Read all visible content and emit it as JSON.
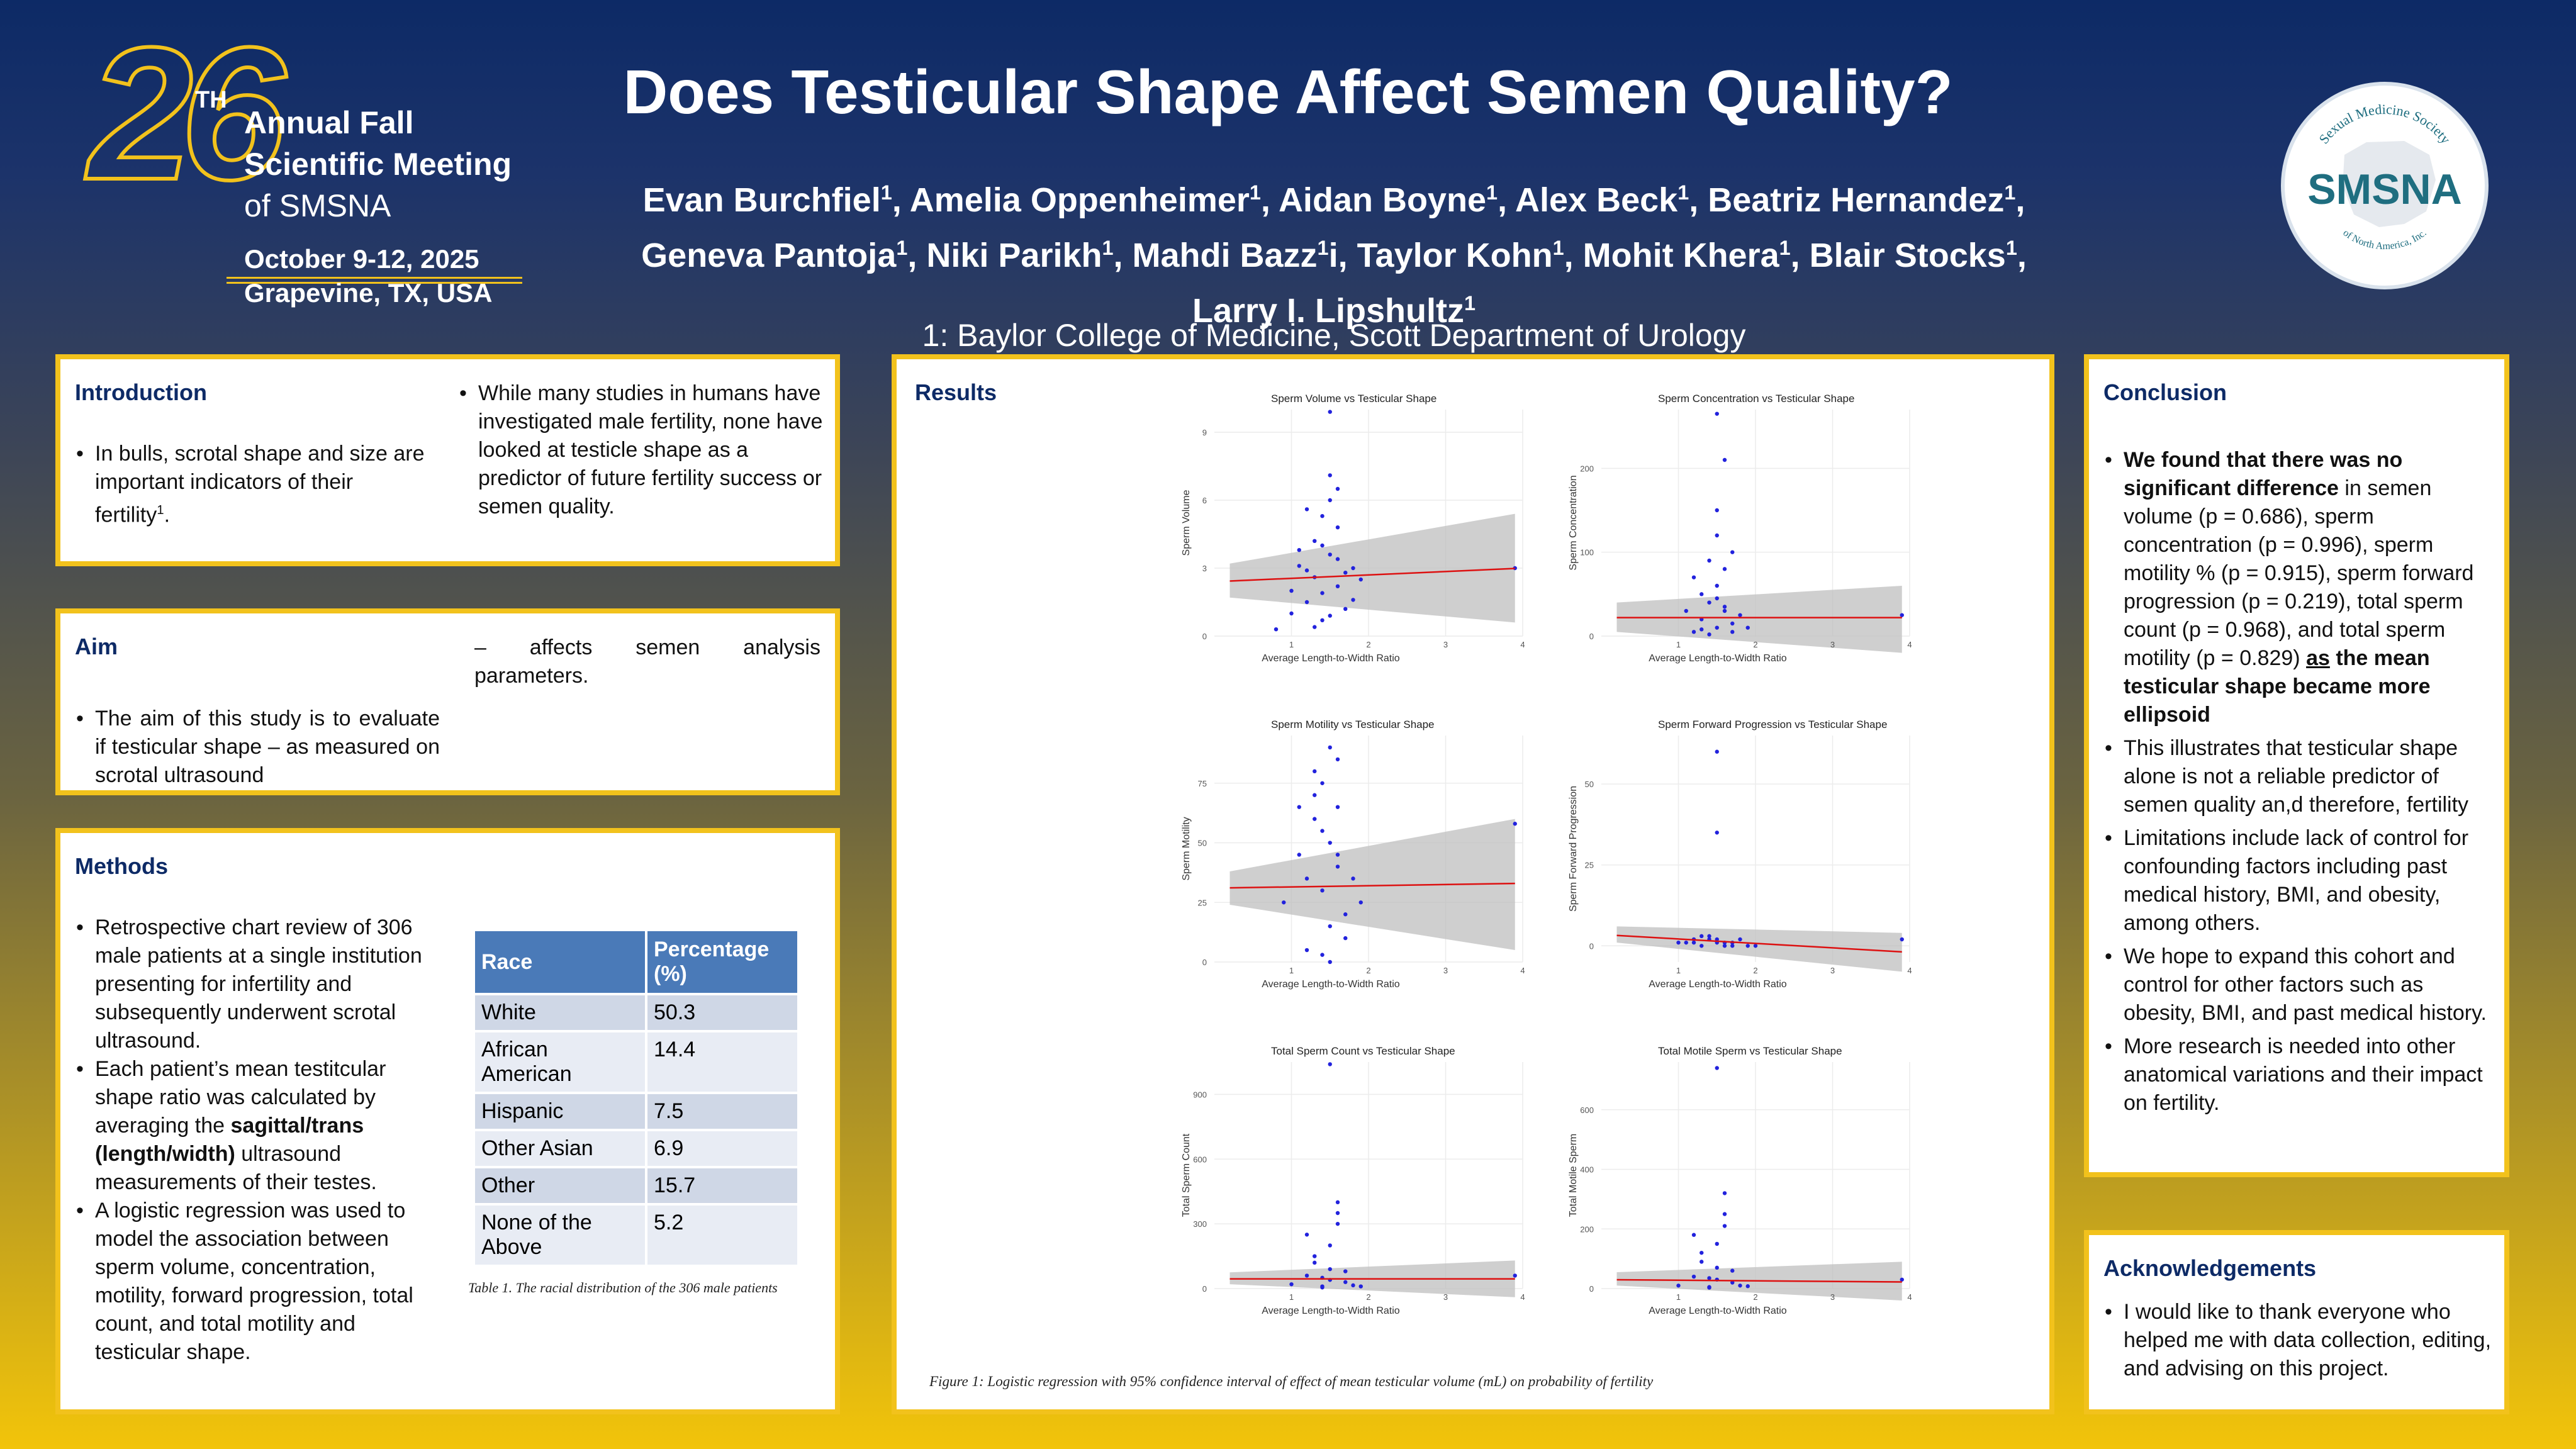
{
  "header": {
    "title": "Does Testicular Shape Affect Semen Quality?",
    "authors_line1": [
      {
        "name": "Evan Burchfiel",
        "sup": "1",
        "after": ", "
      },
      {
        "name": "Amelia Oppenheimer",
        "sup": "1",
        "after": ", "
      },
      {
        "name": "Aidan Boyne",
        "sup": "1",
        "after": ", "
      },
      {
        "name": "Alex Beck",
        "sup": "1",
        "after": ", "
      },
      {
        "name": "Beatriz Hernandez",
        "sup": "1",
        "after": ","
      }
    ],
    "authors_line2": [
      {
        "name": "Geneva Pantoja",
        "sup": "1",
        "after": ", "
      },
      {
        "name": "Niki Parikh",
        "sup": "1",
        "after": ", "
      },
      {
        "name": "Mahdi Bazz",
        "sup": "1",
        "after": "i, "
      },
      {
        "name": "Taylor Kohn",
        "sup": "1",
        "after": ", "
      },
      {
        "name": "Mohit Khera",
        "sup": "1",
        "after": ", "
      },
      {
        "name": "Blair Stocks",
        "sup": "1",
        "after": ","
      }
    ],
    "authors_line3": [
      {
        "name": "Larry I. Lipshultz",
        "sup": "1",
        "after": ""
      }
    ],
    "affiliation": "1: Baylor College of Medicine, Scott Department of Urology"
  },
  "meeting_logo": {
    "number": "26",
    "suffix": "TH",
    "line1": "Annual Fall",
    "line2": "Scientific Meeting",
    "line3": "of SMSNA",
    "dates": "October 9-12, 2025",
    "location": "Grapevine, TX, USA",
    "colors": {
      "gold": "#f2c21c",
      "white": "#ffffff"
    }
  },
  "smsna_logo": {
    "abbr": "SMSNA",
    "arc_top": "Sexual Medicine Society",
    "arc_bottom": "of North America, Inc.",
    "color": "#1f6e80"
  },
  "introduction": {
    "heading": "Introduction",
    "col1": [
      {
        "text": "In bulls, scrotal shape and size are important indicators of their fertility",
        "sup": "1",
        "after": "."
      }
    ],
    "col2": [
      {
        "text": "While many studies in humans have investigated male fertility, none have looked at testicle shape as a predictor of future fertility success or semen quality."
      }
    ]
  },
  "aim": {
    "heading": "Aim",
    "bullet": "The aim of this study is to evaluate if testicular shape – as measured on scrotal ultrasound",
    "continuation": "– affects semen analysis parameters."
  },
  "methods": {
    "heading": "Methods",
    "bullets": [
      {
        "parts": [
          {
            "t": "Retrospective chart review of 306 male patients at a single institution presenting for infertility and subsequently underwent scrotal ultrasound.",
            "b": false
          }
        ]
      },
      {
        "parts": [
          {
            "t": "Each patient’s mean testitcular shape ratio was calculated by averaging the ",
            "b": false
          },
          {
            "t": "sagittal/trans (length/width)",
            "b": true
          },
          {
            "t": " ultrasound measurements of their testes.",
            "b": false
          }
        ]
      },
      {
        "parts": [
          {
            "t": "A logistic regression was used to model the association between sperm volume, concentration, motility, forward progression, total count, and total motility and testicular shape.",
            "b": false
          }
        ]
      }
    ],
    "table": {
      "headers": [
        "Race",
        "Percentage (%)"
      ],
      "rows": [
        [
          "White",
          "50.3"
        ],
        [
          "African American",
          "14.4"
        ],
        [
          "Hispanic",
          "7.5"
        ],
        [
          "Other Asian",
          "6.9"
        ],
        [
          "Other",
          "15.7"
        ],
        [
          "None of the Above",
          "5.2"
        ]
      ],
      "caption": "Table 1. The racial distribution of the 306 male patients"
    }
  },
  "results": {
    "heading": "Results",
    "figure_caption": "Figure 1: Logistic regression with 95% confidence interval of effect of mean testicular volume (mL) on probability of fertility"
  },
  "chart_data": [
    {
      "type": "scatter",
      "title": "Sperm Volume vs Testicular Shape",
      "xlabel": "Average Length-to-Width Ratio",
      "ylabel": "Sperm Volume",
      "xlim": [
        0,
        4
      ],
      "ylim": [
        0,
        10
      ],
      "xticks": [
        "1",
        "2",
        "3",
        "4"
      ],
      "yticks": [
        "0",
        "3",
        "6",
        "9"
      ],
      "trend": {
        "x": [
          0,
          4
        ],
        "y": [
          2.4,
          3.0
        ]
      },
      "ci_left": [
        1.7,
        3.2
      ],
      "ci_right": [
        0.6,
        5.4
      ],
      "series": [
        {
          "x": [
            0.8,
            1.0,
            1.1,
            1.2,
            1.3,
            1.3,
            1.4,
            1.4,
            1.5,
            1.5,
            1.6,
            1.6,
            1.7,
            1.8,
            1.9,
            1.2,
            1.4,
            1.5,
            1.6,
            1.0,
            1.3,
            1.7,
            1.5,
            1.4,
            1.1,
            1.8,
            1.6,
            1.2,
            3.9,
            1.5
          ],
          "y": [
            0.3,
            2.0,
            3.1,
            1.5,
            4.2,
            2.6,
            5.3,
            0.7,
            3.6,
            6.0,
            2.2,
            4.8,
            1.2,
            3.0,
            2.5,
            5.6,
            1.9,
            7.1,
            3.4,
            1.0,
            0.4,
            2.8,
            9.9,
            4.0,
            3.8,
            1.6,
            6.5,
            2.9,
            3.0,
            0.9
          ]
        }
      ]
    },
    {
      "type": "scatter",
      "title": "Sperm Concentration vs Testicular Shape",
      "xlabel": "Average Length-to-Width Ratio",
      "ylabel": "Sperm Concentration",
      "xlim": [
        0,
        4
      ],
      "ylim": [
        0,
        270
      ],
      "xticks": [
        "1",
        "2",
        "3",
        "4"
      ],
      "yticks": [
        "0",
        "100",
        "200"
      ],
      "trend": {
        "x": [
          0,
          4
        ],
        "y": [
          22,
          22
        ]
      },
      "ci_left": [
        5,
        40
      ],
      "ci_right": [
        -20,
        60
      ],
      "series": [
        {
          "x": [
            1.2,
            1.3,
            1.4,
            1.5,
            1.5,
            1.6,
            1.6,
            1.7,
            1.8,
            1.3,
            1.4,
            1.5,
            1.6,
            1.7,
            1.2,
            1.5,
            1.9,
            1.4,
            1.6,
            1.5,
            1.3,
            1.7,
            1.1,
            3.9,
            1.5
          ],
          "y": [
            5,
            20,
            40,
            10,
            60,
            30,
            80,
            15,
            25,
            50,
            90,
            120,
            35,
            5,
            70,
            150,
            10,
            2,
            210,
            45,
            8,
            100,
            30,
            25,
            265
          ]
        }
      ]
    },
    {
      "type": "scatter",
      "title": "Sperm Motility vs Testicular Shape",
      "xlabel": "Average Length-to-Width Ratio",
      "ylabel": "Sperm Motility",
      "xlim": [
        0,
        4
      ],
      "ylim": [
        0,
        95
      ],
      "xticks": [
        "1",
        "2",
        "3",
        "4"
      ],
      "yticks": [
        "0",
        "25",
        "50",
        "75"
      ],
      "trend": {
        "x": [
          0,
          4
        ],
        "y": [
          31,
          33
        ]
      },
      "ci_left": [
        24,
        38
      ],
      "ci_right": [
        5,
        60
      ],
      "series": [
        {
          "x": [
            0.9,
            1.1,
            1.2,
            1.3,
            1.4,
            1.4,
            1.5,
            1.5,
            1.6,
            1.6,
            1.7,
            1.8,
            1.3,
            1.5,
            1.7,
            1.4,
            1.6,
            1.2,
            1.9,
            1.5,
            1.3,
            1.6,
            3.9,
            1.4,
            1.1
          ],
          "y": [
            25,
            45,
            5,
            60,
            30,
            75,
            15,
            50,
            40,
            85,
            20,
            35,
            70,
            90,
            10,
            55,
            65,
            35,
            25,
            0,
            80,
            45,
            58,
            3,
            65
          ]
        }
      ]
    },
    {
      "type": "scatter",
      "title": "Sperm Forward Progression vs Testicular Shape",
      "xlabel": "Average Length-to-Width Ratio",
      "ylabel": "Sperm Forward Progression",
      "xlim": [
        0,
        4
      ],
      "ylim": [
        -5,
        65
      ],
      "xticks": [
        "1",
        "2",
        "3",
        "4"
      ],
      "yticks": [
        "0",
        "25",
        "50"
      ],
      "trend": {
        "x": [
          0,
          4
        ],
        "y": [
          3.5,
          -2
        ]
      },
      "ci_left": [
        1,
        6
      ],
      "ci_right": [
        -8,
        4
      ],
      "series": [
        {
          "x": [
            1.0,
            1.2,
            1.3,
            1.4,
            1.5,
            1.5,
            1.6,
            1.7,
            1.8,
            1.9,
            1.3,
            1.6,
            1.4,
            1.7,
            1.2,
            1.5,
            3.9,
            1.5,
            1.1,
            2.0
          ],
          "y": [
            1,
            2,
            0,
            3,
            1,
            2,
            0,
            1,
            2,
            0,
            3,
            1,
            2,
            0,
            1,
            35,
            2,
            60,
            1,
            0
          ]
        }
      ]
    },
    {
      "type": "scatter",
      "title": "Total Sperm Count vs Testicular Shape",
      "xlabel": "Average Length-to-Width Ratio",
      "ylabel": "Total Sperm Count",
      "xlim": [
        0,
        4
      ],
      "ylim": [
        0,
        1050
      ],
      "xticks": [
        "1",
        "2",
        "3",
        "4"
      ],
      "yticks": [
        "0",
        "300",
        "600",
        "900"
      ],
      "trend": {
        "x": [
          0,
          4
        ],
        "y": [
          45,
          45
        ]
      },
      "ci_left": [
        20,
        75
      ],
      "ci_right": [
        -40,
        130
      ],
      "series": [
        {
          "x": [
            1.0,
            1.2,
            1.3,
            1.4,
            1.5,
            1.5,
            1.6,
            1.7,
            1.8,
            1.3,
            1.4,
            1.6,
            1.5,
            1.7,
            1.2,
            1.9,
            1.4,
            1.6,
            3.9,
            1.5
          ],
          "y": [
            20,
            60,
            120,
            10,
            200,
            40,
            300,
            80,
            15,
            150,
            5,
            400,
            90,
            30,
            250,
            10,
            50,
            350,
            60,
            1040
          ]
        }
      ]
    },
    {
      "type": "scatter",
      "title": "Total Motile Sperm vs Testicular Shape",
      "xlabel": "Average Length-to-Width Ratio",
      "ylabel": "Total Motile Sperm",
      "xlim": [
        0,
        4
      ],
      "ylim": [
        0,
        760
      ],
      "xticks": [
        "1",
        "2",
        "3",
        "4"
      ],
      "yticks": [
        "0",
        "200",
        "400",
        "600"
      ],
      "trend": {
        "x": [
          0,
          4
        ],
        "y": [
          30,
          22
        ]
      },
      "ci_left": [
        10,
        55
      ],
      "ci_right": [
        -40,
        90
      ],
      "series": [
        {
          "x": [
            1.0,
            1.2,
            1.3,
            1.4,
            1.5,
            1.5,
            1.6,
            1.7,
            1.8,
            1.3,
            1.4,
            1.6,
            1.5,
            1.7,
            1.2,
            1.9,
            1.4,
            1.6,
            3.9,
            1.5
          ],
          "y": [
            10,
            40,
            90,
            5,
            150,
            30,
            210,
            60,
            10,
            120,
            3,
            250,
            70,
            20,
            180,
            8,
            35,
            320,
            30,
            740
          ]
        }
      ]
    }
  ],
  "conclusion": {
    "heading": "Conclusion",
    "bullets": [
      {
        "parts": [
          {
            "t": "We found that there was no significant difference",
            "s": "b"
          },
          {
            "t": " in semen volume (p = 0.686), sperm concentration (p = 0.996), sperm motility % (p = 0.915), sperm forward progression (p = 0.219), total sperm count (p = 0.968), and total sperm motility (p = 0.829) ",
            "s": ""
          },
          {
            "t": "as",
            "s": "bu"
          },
          {
            "t": " the mean testicular shape became more ellipsoid",
            "s": "b"
          }
        ]
      },
      {
        "parts": [
          {
            "t": "This illustrates that testicular shape alone is not a reliable predictor of semen quality an,d therefore, fertility",
            "s": ""
          }
        ]
      },
      {
        "parts": [
          {
            "t": "Limitations include lack of control for confounding factors including past medical history, BMI, and obesity, among others.",
            "s": ""
          }
        ]
      },
      {
        "parts": [
          {
            "t": "We hope to expand this cohort and control for other factors such as obesity, BMI, and past medical history.",
            "s": ""
          }
        ]
      },
      {
        "parts": [
          {
            "t": "More research is needed into other anatomical variations and their impact on fertility.",
            "s": ""
          }
        ]
      }
    ]
  },
  "acknowledgements": {
    "heading": "Acknowledgements",
    "bullet": "I would like to thank everyone who helped me with data collection, editing, and advising on this project."
  }
}
